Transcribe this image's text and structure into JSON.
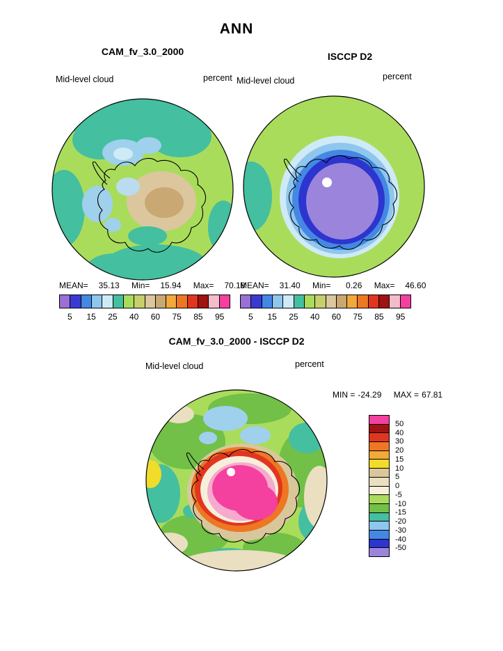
{
  "title": "ANN",
  "top": {
    "model": {
      "title": "CAM_fv_3.0_2000",
      "variable": "Mid-level cloud",
      "units": "percent",
      "stats": {
        "mean_label": "MEAN=",
        "mean": "35.13",
        "min_label": "Min=",
        "min": "15.94",
        "max_label": "Max=",
        "max": "70.18"
      }
    },
    "obs": {
      "title": "ISCCP D2",
      "variable": "Mid-level cloud",
      "units": "percent",
      "stats": {
        "mean_label": "MEAN=",
        "mean": "31.40",
        "min_label": "Min=",
        "min": "0.26",
        "max_label": "Max=",
        "max": "46.60"
      }
    },
    "colorbar": {
      "colors": [
        "#9b70d6",
        "#3a3ad2",
        "#4488e4",
        "#8fc6ee",
        "#cfeaf7",
        "#44bfa0",
        "#aadc5c",
        "#c6cf6c",
        "#dcc69e",
        "#c9a873",
        "#f2a93c",
        "#ee7723",
        "#e23520",
        "#a11212",
        "#f4bcca",
        "#f4409f"
      ],
      "ticks": [
        "5",
        "15",
        "25",
        "40",
        "60",
        "75",
        "85",
        "95"
      ]
    }
  },
  "diff": {
    "title": "CAM_fv_3.0_2000 - ISCCP D2",
    "variable": "Mid-level cloud",
    "units": "percent",
    "stats": {
      "min_label": "MIN =",
      "min": "-24.29",
      "max_label": "MAX =",
      "max": "67.81"
    },
    "colorbar": {
      "colors": [
        "#f4409f",
        "#a11212",
        "#e23520",
        "#ee7723",
        "#f2a93c",
        "#f2dc2a",
        "#d9c79b",
        "#eadfc1",
        "#f5efdc",
        "#aadc5c",
        "#72c047",
        "#44bfa0",
        "#8fc6ee",
        "#4488e4",
        "#2d35cf",
        "#9b85dc"
      ],
      "labels": [
        "50",
        "40",
        "30",
        "20",
        "15",
        "10",
        "5",
        "0",
        "-5",
        "-10",
        "-15",
        "-20",
        "-30",
        "-40",
        "-50"
      ]
    }
  },
  "chart_data": [
    {
      "type": "heatmap",
      "title": "CAM_fv_3.0_2000",
      "season": "ANN",
      "variable": "Mid-level cloud",
      "units": "percent",
      "projection": "south-polar-stereographic",
      "stats": {
        "mean": 35.13,
        "min": 15.94,
        "max": 70.18
      },
      "levels": [
        5,
        10,
        15,
        20,
        25,
        30,
        40,
        50,
        60,
        70,
        75,
        80,
        85,
        90,
        95
      ],
      "legend_ticks": [
        5,
        15,
        25,
        40,
        60,
        75,
        85,
        95
      ],
      "legend_position": "bottom"
    },
    {
      "type": "heatmap",
      "title": "ISCCP D2",
      "season": "ANN",
      "variable": "Mid-level cloud",
      "units": "percent",
      "projection": "south-polar-stereographic",
      "stats": {
        "mean": 31.4,
        "min": 0.26,
        "max": 46.6
      },
      "levels": [
        5,
        10,
        15,
        20,
        25,
        30,
        40,
        50,
        60,
        70,
        75,
        80,
        85,
        90,
        95
      ],
      "legend_ticks": [
        5,
        15,
        25,
        40,
        60,
        75,
        85,
        95
      ],
      "legend_position": "bottom"
    },
    {
      "type": "heatmap",
      "title": "CAM_fv_3.0_2000 - ISCCP D2",
      "season": "ANN",
      "variable": "Mid-level cloud",
      "units": "percent",
      "projection": "south-polar-stereographic",
      "stats": {
        "min": -24.29,
        "max": 67.81
      },
      "levels": [
        -50,
        -40,
        -30,
        -20,
        -15,
        -10,
        -5,
        0,
        5,
        10,
        15,
        20,
        30,
        40,
        50
      ],
      "legend_position": "right"
    }
  ]
}
